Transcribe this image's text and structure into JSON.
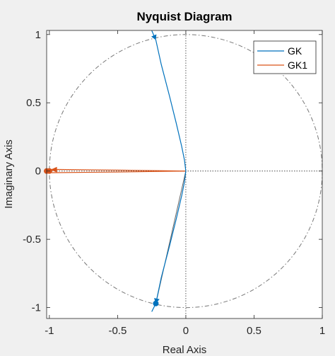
{
  "chart_data": {
    "type": "line",
    "title": "Nyquist Diagram",
    "xlabel": "Real Axis",
    "ylabel": "Imaginary Axis",
    "xlim": [
      -1.02,
      1.0
    ],
    "ylim": [
      -1.08,
      1.03
    ],
    "xticks": [
      -1,
      -0.5,
      0,
      0.5,
      1
    ],
    "xtick_labels": [
      "-1",
      "-0.5",
      "0",
      "0.5",
      "1"
    ],
    "yticks": [
      -1,
      -0.5,
      0,
      0.5,
      1
    ],
    "ytick_labels": [
      "-1",
      "-0.5",
      "0",
      "0.5",
      "1"
    ],
    "grid": false,
    "unit_circle": true,
    "legend": {
      "position": "top-right",
      "entries": [
        "GK",
        "GK1"
      ]
    },
    "series": [
      {
        "name": "GK",
        "color": "#0072BD",
        "x": [
          -0.25,
          -0.22,
          -0.18,
          -0.12,
          -0.07,
          -0.03,
          -0.01,
          0,
          -0.01,
          -0.03,
          -0.07,
          -0.12,
          -0.18,
          -0.22,
          -0.25
        ],
        "y": [
          1.03,
          0.96,
          0.78,
          0.55,
          0.35,
          0.18,
          0.08,
          0,
          -0.08,
          -0.18,
          -0.35,
          -0.55,
          -0.78,
          -0.97,
          -1.03
        ],
        "arrows_at": [
          1,
          13
        ],
        "markers_at": [
          13
        ]
      },
      {
        "name": "GK1",
        "color": "#D95319",
        "upper": {
          "x": [
            0,
            -0.5,
            -0.98,
            -1.02
          ],
          "y": [
            0,
            0.007,
            0.012,
            0.005
          ]
        },
        "lower": {
          "x": [
            0,
            -0.5,
            -0.98,
            -1.02
          ],
          "y": [
            0,
            -0.007,
            -0.012,
            -0.005
          ]
        },
        "arrow_point": [
          -0.96,
          0.01
        ],
        "markers": [
          [
            -1.0,
            0.0
          ],
          [
            -1.02,
            0.0
          ]
        ]
      }
    ],
    "annotation_line": {
      "color": "#666666",
      "x": [
        0,
        -0.22
      ],
      "y": [
        0,
        -0.97
      ]
    }
  }
}
